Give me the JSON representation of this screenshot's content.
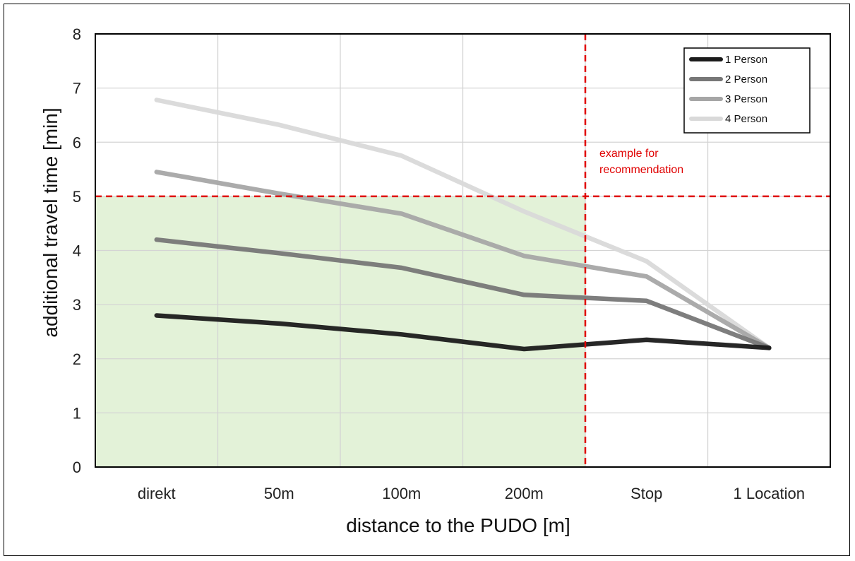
{
  "chart_data": {
    "type": "line",
    "title": "",
    "xlabel": "distance to the PUDO [m]",
    "ylabel": "additional travel time [min]",
    "categories": [
      "direkt",
      "50m",
      "100m",
      "200m",
      "Stop",
      "1 Location"
    ],
    "ylim": [
      0,
      8
    ],
    "yticks": [
      0,
      1,
      2,
      3,
      4,
      5,
      6,
      7,
      8
    ],
    "grid": true,
    "legend_position": "top-right",
    "series": [
      {
        "name": "1 Person",
        "color": "#1b1b1b",
        "values": [
          2.8,
          2.65,
          2.45,
          2.18,
          2.35,
          2.2
        ]
      },
      {
        "name": "2 Person",
        "color": "#777777",
        "values": [
          4.2,
          3.95,
          3.68,
          3.18,
          3.07,
          2.2
        ]
      },
      {
        "name": "3 Person",
        "color": "#a6a6a6",
        "values": [
          5.45,
          5.05,
          4.68,
          3.9,
          3.52,
          2.2
        ]
      },
      {
        "name": "4 Person",
        "color": "#d9d9d9",
        "values": [
          6.78,
          6.32,
          5.75,
          4.72,
          3.8,
          2.2
        ]
      }
    ],
    "recommendation": {
      "label": "example for recommendation",
      "threshold_y": 5,
      "limit_x_between": [
        "200m",
        "Stop"
      ],
      "region_color": "#e3f2d8",
      "line_color": "#e00000"
    }
  }
}
